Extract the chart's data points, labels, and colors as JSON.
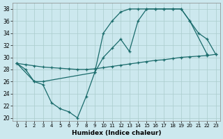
{
  "xlabel": "Humidex (Indice chaleur)",
  "bg_color": "#cce8ee",
  "grid_color": "#aacccc",
  "line_color": "#1a6b6b",
  "xlim": [
    -0.5,
    23.5
  ],
  "ylim": [
    19.5,
    39
  ],
  "xticks": [
    0,
    1,
    2,
    3,
    4,
    5,
    6,
    7,
    8,
    9,
    10,
    11,
    12,
    13,
    14,
    15,
    16,
    17,
    18,
    19,
    20,
    21,
    22,
    23
  ],
  "yticks": [
    20,
    22,
    24,
    26,
    28,
    30,
    32,
    34,
    36,
    38
  ],
  "series1_x": [
    0,
    1,
    2,
    3,
    4,
    5,
    6,
    7,
    8,
    9,
    10,
    11,
    12,
    13,
    14,
    15,
    16,
    17,
    18,
    19,
    20,
    21,
    22,
    23
  ],
  "series1_y": [
    29,
    28.8,
    28.6,
    28.4,
    28.3,
    28.2,
    28.1,
    28.0,
    28.0,
    28.1,
    28.3,
    28.5,
    28.7,
    28.9,
    29.1,
    29.3,
    29.5,
    29.6,
    29.8,
    30.0,
    30.1,
    30.2,
    30.3,
    30.5
  ],
  "series2_x": [
    0,
    2,
    3,
    9,
    10,
    11,
    12,
    13,
    14,
    15,
    16,
    17,
    18,
    19,
    20,
    22
  ],
  "series2_y": [
    29,
    26,
    26,
    27.5,
    30,
    31.5,
    33,
    31,
    36,
    38,
    38,
    38,
    38,
    38,
    36,
    30.5
  ],
  "series3_x": [
    0,
    1,
    2,
    3,
    4,
    5,
    6,
    7,
    8,
    9,
    10,
    11,
    12,
    13,
    14,
    15,
    16,
    17,
    18,
    19,
    20,
    21,
    22,
    23
  ],
  "series3_y": [
    29,
    28,
    26,
    25.5,
    22.5,
    21.5,
    21,
    20,
    23.5,
    27.5,
    34,
    36,
    37.5,
    38,
    38,
    38,
    38,
    38,
    38,
    38,
    36,
    34,
    33,
    30.5
  ]
}
